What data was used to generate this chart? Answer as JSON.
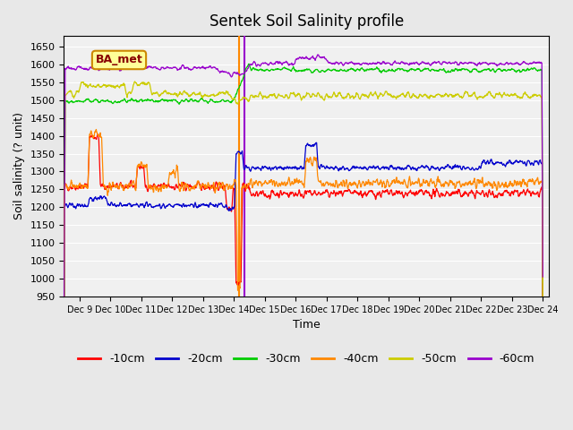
{
  "title": "Sentek Soil Salinity profile",
  "xlabel": "Time",
  "ylabel": "Soil salinity (? unit)",
  "ylim": [
    950,
    1680
  ],
  "yticks": [
    950,
    1000,
    1050,
    1100,
    1150,
    1200,
    1250,
    1300,
    1350,
    1400,
    1450,
    1500,
    1550,
    1600,
    1650
  ],
  "xtick_positions": [
    9,
    10,
    11,
    12,
    13,
    14,
    15,
    16,
    17,
    18,
    19,
    20,
    21,
    22,
    23,
    24
  ],
  "xtick_labels": [
    "Dec 9",
    "Dec 10",
    "Dec 11",
    "Dec 12",
    "Dec 13",
    "Dec 14",
    "Dec 15",
    "Dec 16",
    "Dec 17",
    "Dec 18",
    "Dec 19",
    "Dec 20",
    "Dec 21",
    "Dec 22",
    "Dec 23",
    "Dec 24"
  ],
  "annotation_label": "BA_met",
  "vline_x_orange": 14.18,
  "vline_x_purple": 14.35,
  "colors": {
    "-10cm": "#ff0000",
    "-20cm": "#0000cc",
    "-30cm": "#00cc00",
    "-40cm": "#ff8800",
    "-50cm": "#cccc00",
    "-60cm": "#9900cc"
  },
  "legend_labels": [
    "-10cm",
    "-20cm",
    "-30cm",
    "-40cm",
    "-50cm",
    "-60cm"
  ],
  "bg_color": "#e8e8e8",
  "plot_bg_color": "#f0f0f0"
}
